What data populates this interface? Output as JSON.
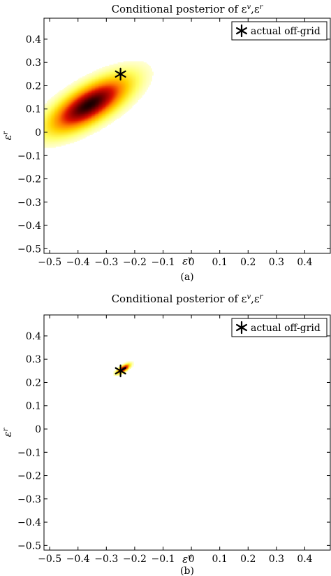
{
  "chart_data": [
    {
      "type": "heatmap",
      "title": "Conditional posterior of ε^v,ε^r",
      "xlabel": "ε^v",
      "ylabel": "ε^r",
      "caption": "(a)",
      "xlim": [
        -0.52,
        0.49
      ],
      "ylim": [
        -0.52,
        0.49
      ],
      "xticks": [
        -0.5,
        -0.4,
        -0.3,
        -0.2,
        -0.1,
        0,
        0.1,
        0.2,
        0.3,
        0.4
      ],
      "yticks": [
        -0.5,
        -0.4,
        -0.3,
        -0.2,
        -0.1,
        0,
        0.1,
        0.2,
        0.3,
        0.4
      ],
      "xtick_labels": [
        "−0.5",
        "−0.4",
        "−0.3",
        "−0.2",
        "−0.1",
        "0",
        "0.1",
        "0.2",
        "0.3",
        "0.4"
      ],
      "ytick_labels": [
        "−0.5",
        "−0.4",
        "−0.3",
        "−0.2",
        "−0.1",
        "0",
        "0.1",
        "0.2",
        "0.3",
        "0.4"
      ],
      "density": {
        "center": [
          -0.36,
          0.12
        ],
        "sigma_major": 0.11,
        "sigma_minor": 0.045,
        "angle_deg": 38
      },
      "colormap": [
        "#ffffff",
        "#ffff66",
        "#ffd200",
        "#ff8000",
        "#dd1100",
        "#8a0000",
        "#1a0000"
      ],
      "marker": {
        "x": -0.25,
        "y": 0.25,
        "symbol": "star",
        "label": "actual off-grid"
      },
      "legend": {
        "position": "top-right",
        "entries": [
          "actual off-grid"
        ]
      },
      "grid": false
    },
    {
      "type": "heatmap",
      "title": "Conditional posterior of ε^v,ε^r",
      "xlabel": "ε^v",
      "ylabel": "ε^r",
      "caption": "(b)",
      "xlim": [
        -0.52,
        0.49
      ],
      "ylim": [
        -0.52,
        0.49
      ],
      "xticks": [
        -0.5,
        -0.4,
        -0.3,
        -0.2,
        -0.1,
        0,
        0.1,
        0.2,
        0.3,
        0.4
      ],
      "yticks": [
        -0.5,
        -0.4,
        -0.3,
        -0.2,
        -0.1,
        0,
        0.1,
        0.2,
        0.3,
        0.4
      ],
      "xtick_labels": [
        "−0.5",
        "−0.4",
        "−0.3",
        "−0.2",
        "−0.1",
        "0",
        "0.1",
        "0.2",
        "0.3",
        "0.4"
      ],
      "ytick_labels": [
        "−0.5",
        "−0.4",
        "−0.3",
        "−0.2",
        "−0.1",
        "0",
        "0.1",
        "0.2",
        "0.3",
        "0.4"
      ],
      "density": {
        "center": [
          -0.24,
          0.26
        ],
        "sigma_major": 0.018,
        "sigma_minor": 0.007,
        "angle_deg": 40
      },
      "colormap": [
        "#ffffff",
        "#ffff66",
        "#ffd200",
        "#ff8000",
        "#dd1100",
        "#8a0000",
        "#1a0000"
      ],
      "marker": {
        "x": -0.25,
        "y": 0.25,
        "symbol": "star",
        "label": "actual off-grid"
      },
      "legend": {
        "position": "top-right",
        "entries": [
          "actual off-grid"
        ]
      },
      "grid": false
    }
  ]
}
